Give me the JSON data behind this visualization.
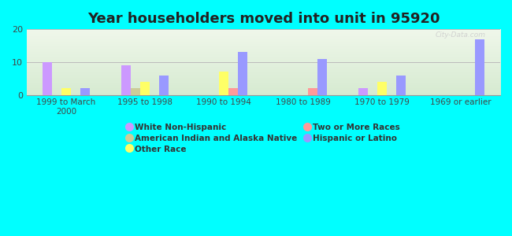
{
  "title": "Year householders moved into unit in 95920",
  "background_color": "#00FFFF",
  "categories": [
    "1999 to March\n2000",
    "1995 to 1998",
    "1990 to 1994",
    "1980 to 1989",
    "1970 to 1979",
    "1969 or earlier"
  ],
  "series": [
    {
      "name": "White Non-Hispanic",
      "values": [
        10,
        9,
        0,
        0,
        2,
        0
      ],
      "color": "#cc99ff"
    },
    {
      "name": "American Indian and Alaska Native",
      "values": [
        0,
        2,
        0,
        0,
        0,
        0
      ],
      "color": "#cccc99"
    },
    {
      "name": "Other Race",
      "values": [
        2,
        4,
        7,
        0,
        4,
        0
      ],
      "color": "#ffff66"
    },
    {
      "name": "Two or More Races",
      "values": [
        0,
        0,
        2,
        2,
        0,
        0
      ],
      "color": "#ff9999"
    },
    {
      "name": "Hispanic or Latino",
      "values": [
        2,
        6,
        13,
        11,
        6,
        17
      ],
      "color": "#9999ff"
    }
  ],
  "ylim": [
    0,
    20
  ],
  "yticks": [
    0,
    10,
    20
  ],
  "watermark": "City-Data.com",
  "bar_width": 0.12,
  "grid_color": "#bbbbbb",
  "title_fontsize": 13,
  "tick_fontsize": 7.5
}
